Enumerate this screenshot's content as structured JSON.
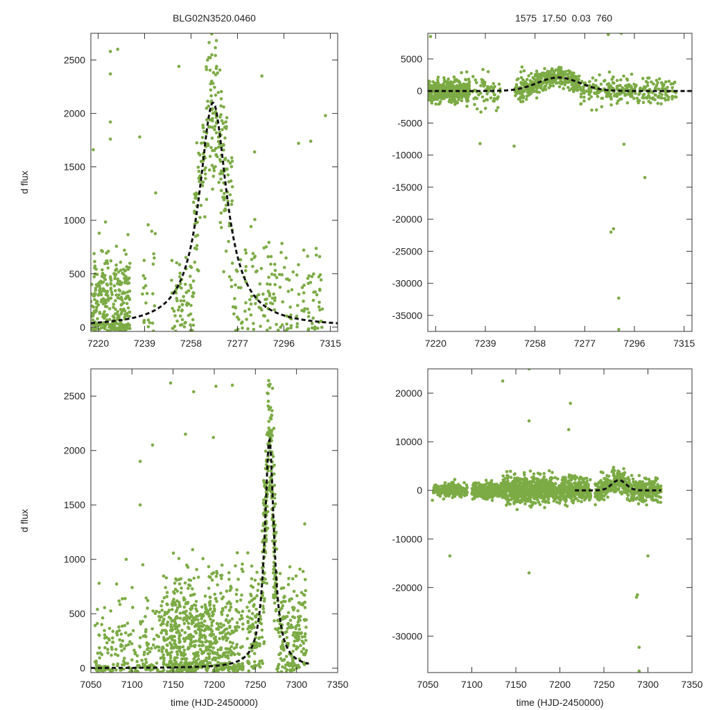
{
  "header": {
    "star_id": "BLG02N3520.0460",
    "params": "1575  17.50  0.03  760"
  },
  "style": {
    "point_color": "#7cab45",
    "model_color": "#111111"
  },
  "chart_data": [
    {
      "id": "top-left",
      "type": "scatter",
      "title": "BLG02N3520.0460",
      "xlabel": "",
      "ylabel": "d flux",
      "xlim": [
        7217,
        7318
      ],
      "ylim": [
        -40,
        2750
      ],
      "xticks": [
        7220,
        7239,
        7258,
        7277,
        7296,
        7315
      ],
      "xtick_labels": [
        "7220",
        "7239",
        "7258",
        "7277",
        "7296",
        "7315"
      ],
      "yticks": [
        0,
        500,
        1000,
        1500,
        2000,
        2500
      ],
      "ytick_labels": [
        "0",
        "500",
        "1000",
        "1500",
        "2000",
        "2500"
      ],
      "model": {
        "t0": 7267,
        "peak": 2100,
        "width": 6.8,
        "shape": "lorentz"
      },
      "point_groups": [
        {
          "x": [
            7217,
            7233
          ],
          "n": 320,
          "center": 200,
          "sigma": 260,
          "min": -40,
          "max": 1100
        },
        {
          "x": [
            7238,
            7244
          ],
          "n": 25,
          "center": 300,
          "sigma": 400,
          "min": -40,
          "max": 1500
        },
        {
          "x": [
            7250,
            7259
          ],
          "n": 70,
          "center": 250,
          "sigma": 220,
          "min": -40,
          "max": 1600
        },
        {
          "x": [
            7259,
            7275
          ],
          "n": 210,
          "center": "model",
          "sigma": 330,
          "min": -40,
          "max": 2750
        },
        {
          "x": [
            7275,
            7312
          ],
          "n": 170,
          "center": 280,
          "sigma": 260,
          "min": -40,
          "max": 1750
        }
      ],
      "outliers": [
        {
          "x": 7225,
          "y": 2580
        },
        {
          "x": 7228,
          "y": 2600
        },
        {
          "x": 7225,
          "y": 2370
        },
        {
          "x": 7225,
          "y": 1920
        },
        {
          "x": 7225,
          "y": 1760
        },
        {
          "x": 7237,
          "y": 1780
        },
        {
          "x": 7313,
          "y": 1980
        },
        {
          "x": 7253,
          "y": 2440
        },
        {
          "x": 7287,
          "y": 2350
        },
        {
          "x": 7284,
          "y": 1640
        },
        {
          "x": 7218,
          "y": 1660
        },
        {
          "x": 7302,
          "y": 1720
        },
        {
          "x": 7307,
          "y": 1740
        }
      ]
    },
    {
      "id": "top-right",
      "type": "scatter",
      "title": "1575  17.50  0.03  760",
      "xlabel": "",
      "ylabel": "",
      "xlim": [
        7217,
        7318
      ],
      "ylim": [
        -37500,
        9000
      ],
      "xticks": [
        7220,
        7239,
        7258,
        7277,
        7296,
        7315
      ],
      "xtick_labels": [
        "7220",
        "7239",
        "7258",
        "7277",
        "7296",
        "7315"
      ],
      "yticks": [
        5000,
        0,
        -5000,
        -10000,
        -15000,
        -20000,
        -25000,
        -30000,
        -35000
      ],
      "ytick_labels": [
        "5000",
        "0",
        "-5000",
        "-10000",
        "-15000",
        "-20000",
        "-25000",
        "-30000",
        "-35000"
      ],
      "model": {
        "t0": 7267,
        "peak": 2100,
        "width": 8,
        "shape": "gauss"
      },
      "point_groups": [
        {
          "x": [
            7217,
            7233
          ],
          "n": 420,
          "center": 0,
          "sigma": 900,
          "min": -4000,
          "max": 3000
        },
        {
          "x": [
            7234,
            7245
          ],
          "n": 60,
          "center": 0,
          "sigma": 1400,
          "min": -8000,
          "max": 4000
        },
        {
          "x": [
            7250,
            7262
          ],
          "n": 170,
          "center": "model",
          "sigma": 900,
          "min": -8000,
          "max": 6000
        },
        {
          "x": [
            7262,
            7275
          ],
          "n": 210,
          "center": "model",
          "sigma": 700,
          "min": -5000,
          "max": 6500
        },
        {
          "x": [
            7275,
            7312
          ],
          "n": 270,
          "center": 0,
          "sigma": 1000,
          "min": -9000,
          "max": 3000
        }
      ],
      "outliers": [
        {
          "x": 7218,
          "y": 8500
        },
        {
          "x": 7286,
          "y": 8800
        },
        {
          "x": 7291,
          "y": 9000
        },
        {
          "x": 7288,
          "y": -21500
        },
        {
          "x": 7287,
          "y": -22000
        },
        {
          "x": 7290,
          "y": -32300
        },
        {
          "x": 7290,
          "y": -37200
        },
        {
          "x": 7300,
          "y": -13500
        },
        {
          "x": 7237,
          "y": -8200
        },
        {
          "x": 7250,
          "y": -8600
        },
        {
          "x": 7292,
          "y": -8300
        }
      ]
    },
    {
      "id": "bottom-left",
      "type": "scatter",
      "title": "",
      "xlabel": "time (HJD-2450000)",
      "ylabel": "d flux",
      "xlim": [
        7050,
        7350
      ],
      "ylim": [
        -40,
        2750
      ],
      "xticks": [
        7050,
        7100,
        7150,
        7200,
        7250,
        7300,
        7350
      ],
      "xtick_labels": [
        "7050",
        "7100",
        "7150",
        "7200",
        "7250",
        "7300",
        "7350"
      ],
      "yticks": [
        0,
        500,
        1000,
        1500,
        2000,
        2500
      ],
      "ytick_labels": [
        "0",
        "500",
        "1000",
        "1500",
        "2000",
        "2500"
      ],
      "model": {
        "t0": 7267,
        "peak": 2100,
        "width": 6.8,
        "shape": "lorentz"
      },
      "point_groups": [
        {
          "x": [
            7055,
            7135
          ],
          "n": 200,
          "center": 120,
          "sigma": 260,
          "min": -40,
          "max": 1100
        },
        {
          "x": [
            7135,
            7185
          ],
          "n": 420,
          "center": 250,
          "sigma": 320,
          "min": -40,
          "max": 2600
        },
        {
          "x": [
            7185,
            7235
          ],
          "n": 330,
          "center": 260,
          "sigma": 320,
          "min": -40,
          "max": 2600
        },
        {
          "x": [
            7240,
            7258
          ],
          "n": 90,
          "center": 350,
          "sigma": 350,
          "min": -40,
          "max": 1700
        },
        {
          "x": [
            7258,
            7276
          ],
          "n": 230,
          "center": "model",
          "sigma": 330,
          "min": -40,
          "max": 2750
        },
        {
          "x": [
            7276,
            7312
          ],
          "n": 200,
          "center": 320,
          "sigma": 300,
          "min": -40,
          "max": 1800
        }
      ],
      "outliers": [
        {
          "x": 7060,
          "y": 780
        },
        {
          "x": 7058,
          "y": 540
        },
        {
          "x": 7093,
          "y": 1000
        },
        {
          "x": 7110,
          "y": 1900
        },
        {
          "x": 7110,
          "y": 1500
        },
        {
          "x": 7125,
          "y": 2050
        },
        {
          "x": 7147,
          "y": 2620
        },
        {
          "x": 7175,
          "y": 2540
        },
        {
          "x": 7202,
          "y": 2590
        },
        {
          "x": 7222,
          "y": 2600
        },
        {
          "x": 7199,
          "y": 2120
        },
        {
          "x": 7165,
          "y": 2150
        }
      ]
    },
    {
      "id": "bottom-right",
      "type": "scatter",
      "title": "",
      "xlabel": "time (HJD-2450000)",
      "ylabel": "",
      "xlim": [
        7050,
        7350
      ],
      "ylim": [
        -37500,
        25000
      ],
      "xticks": [
        7050,
        7100,
        7150,
        7200,
        7250,
        7300,
        7350
      ],
      "xtick_labels": [
        "7050",
        "7100",
        "7150",
        "7200",
        "7250",
        "7300",
        "7350"
      ],
      "yticks": [
        20000,
        10000,
        0,
        -10000,
        -20000,
        -30000
      ],
      "ytick_labels": [
        "20000",
        "10000",
        "0",
        "-10000",
        "-20000",
        "-30000"
      ],
      "model": {
        "t0": 7267,
        "peak": 2100,
        "width": 8,
        "shape": "gauss",
        "x_start": 7217
      },
      "point_groups": [
        {
          "x": [
            7055,
            7095
          ],
          "n": 220,
          "center": 0,
          "sigma": 700,
          "min": -4000,
          "max": 5000
        },
        {
          "x": [
            7100,
            7135
          ],
          "n": 260,
          "center": 0,
          "sigma": 800,
          "min": -4000,
          "max": 5000
        },
        {
          "x": [
            7135,
            7185
          ],
          "n": 520,
          "center": 0,
          "sigma": 1400,
          "min": -8000,
          "max": 13000
        },
        {
          "x": [
            7185,
            7235
          ],
          "n": 420,
          "center": 0,
          "sigma": 1200,
          "min": -8000,
          "max": 12000
        },
        {
          "x": [
            7240,
            7262
          ],
          "n": 140,
          "center": "model",
          "sigma": 1200,
          "min": -7000,
          "max": 6000
        },
        {
          "x": [
            7262,
            7275
          ],
          "n": 150,
          "center": "model",
          "sigma": 900,
          "min": -4000,
          "max": 6000
        },
        {
          "x": [
            7275,
            7315
          ],
          "n": 240,
          "center": 0,
          "sigma": 1100,
          "min": -9000,
          "max": 4000
        }
      ],
      "outliers": [
        {
          "x": 7135,
          "y": 22500
        },
        {
          "x": 7165,
          "y": 25000
        },
        {
          "x": 7212,
          "y": 17900
        },
        {
          "x": 7165,
          "y": 14300
        },
        {
          "x": 7210,
          "y": 12500
        },
        {
          "x": 7165,
          "y": -17000
        },
        {
          "x": 7075,
          "y": -13500
        },
        {
          "x": 7288,
          "y": -21500
        },
        {
          "x": 7287,
          "y": -22000
        },
        {
          "x": 7290,
          "y": -32300
        },
        {
          "x": 7290,
          "y": -37200
        },
        {
          "x": 7300,
          "y": -13500
        }
      ]
    }
  ]
}
